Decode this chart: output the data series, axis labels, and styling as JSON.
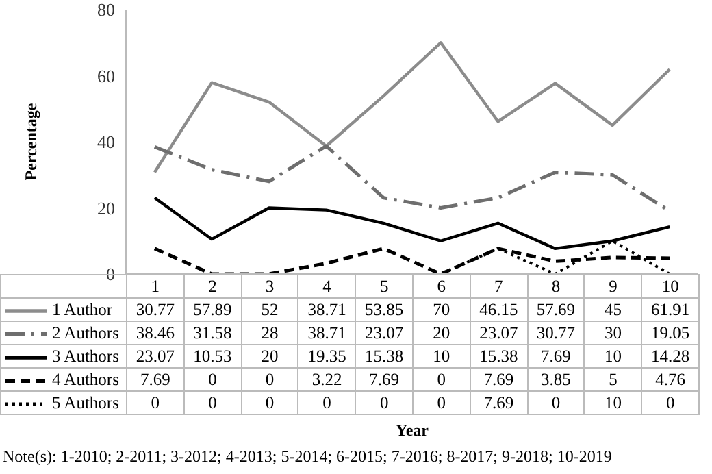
{
  "chart_data": {
    "type": "line",
    "ylabel": "Percentage",
    "categories": [
      "1",
      "2",
      "3",
      "4",
      "5",
      "6",
      "7",
      "8",
      "9",
      "10"
    ],
    "series": [
      {
        "name": "1 Author",
        "color": "#8c8c8c",
        "line_style": "solid",
        "values": [
          30.77,
          57.89,
          52,
          38.71,
          53.85,
          70,
          46.15,
          57.69,
          45,
          61.91
        ]
      },
      {
        "name": "2 Authors",
        "color": "#6e6e6e",
        "line_style": "dashed",
        "values": [
          38.46,
          31.58,
          28,
          38.71,
          23.07,
          20,
          23.07,
          30.77,
          30,
          19.05
        ]
      },
      {
        "name": "3 Authors",
        "color": "#000000",
        "line_style": "solid",
        "values": [
          23.07,
          10.53,
          20,
          19.35,
          15.38,
          10,
          15.38,
          7.69,
          10,
          14.28
        ]
      },
      {
        "name": "4 Authors",
        "color": "#000000",
        "line_style": "dashed",
        "values": [
          7.69,
          0,
          0,
          3.22,
          7.69,
          0,
          7.69,
          3.85,
          5,
          4.76
        ]
      },
      {
        "name": "5 Authors",
        "color": "#000000",
        "line_style": "dotted",
        "values": [
          0,
          0,
          0,
          0,
          0,
          0,
          7.69,
          0,
          10,
          0
        ]
      }
    ],
    "ylim": [
      0,
      80
    ],
    "yticks": [
      0,
      20,
      40,
      60,
      80
    ],
    "grid": false,
    "legend": "bottom",
    "marker": "none",
    "data_labels": true,
    "annotations": [
      "Year",
      "Note(s): 1-2010; 2-2011; 3-2012; 4-2013; 5-2014; 6-2015; 7-2016; 8-2017; 9-2018; 10-2019"
    ]
  }
}
